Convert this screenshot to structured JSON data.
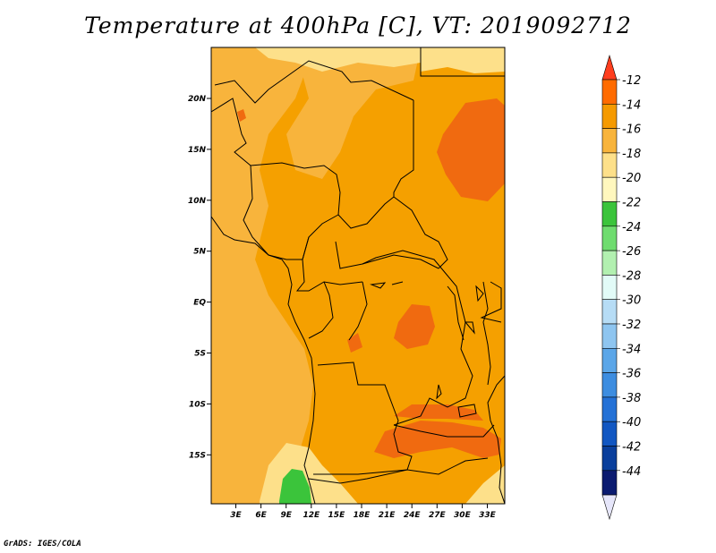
{
  "title": "Temperature at 400hPa [C], VT: 2019092712",
  "credit": "GrADS: IGES/COLA",
  "map": {
    "lat_labels": [
      "20N",
      "15N",
      "10N",
      "5N",
      "EQ",
      "5S",
      "10S",
      "15S"
    ],
    "lon_labels": [
      "3E",
      "6E",
      "9E",
      "12E",
      "15E",
      "18E",
      "21E",
      "24E",
      "27E",
      "30E",
      "33E"
    ],
    "lat_range": [
      -20,
      24.5
    ],
    "lon_range": [
      0,
      36
    ]
  },
  "colorbar": {
    "levels": [
      "-12",
      "-14",
      "-16",
      "-18",
      "-20",
      "-22",
      "-24",
      "-26",
      "-28",
      "-30",
      "-32",
      "-34",
      "-36",
      "-38",
      "-40",
      "-42",
      "-44"
    ],
    "colors": [
      "#ff3e1e",
      "#ff6b00",
      "#f59a00",
      "#f8b43c",
      "#fde08a",
      "#fff7be",
      "#3bc43b",
      "#6fdc6f",
      "#b2f0b0",
      "#e2fbf7",
      "#b6dcf5",
      "#8ec5f0",
      "#5ba6e8",
      "#3d8de0",
      "#2471d6",
      "#1257c2",
      "#0a3f9c",
      "#0b1b70",
      "#e6e6fa"
    ]
  }
}
